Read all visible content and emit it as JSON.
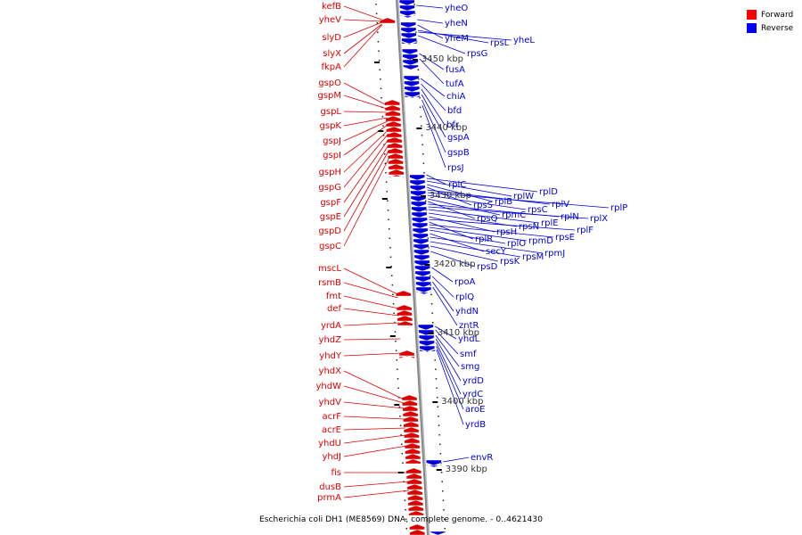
{
  "caption": "Escherichia coli DH1 (ME8569) DNA, complete genome. - 0..4621430",
  "legend": [
    {
      "label": "Forward",
      "color": "#ff0000"
    },
    {
      "label": "Reverse",
      "color": "#0000ff"
    }
  ],
  "colors": {
    "forward": "#dd0000",
    "reverse": "#0000dd",
    "backbone": "#888888"
  },
  "scale_ticks": [
    "3450 kbp",
    "3440 kbp",
    "3430 kbp",
    "3420 kbp",
    "3410 kbp",
    "3400 kbp",
    "3390 kbp"
  ],
  "forward_genes": [
    "kefB",
    "yheV",
    "slyD",
    "slyX",
    "fkpA",
    "gspO",
    "gspM",
    "gspL",
    "gspK",
    "gspJ",
    "gspI",
    "gspH",
    "gspG",
    "gspF",
    "gspE",
    "gspD",
    "gspC",
    "mscL",
    "rsmB",
    "fmt",
    "def",
    "yrdA",
    "yhdZ",
    "yhdY",
    "yhdX",
    "yhdW",
    "yhdV",
    "acrF",
    "acrE",
    "yhdU",
    "yhdJ",
    "fis",
    "dusB",
    "prmA"
  ],
  "reverse_genes": [
    "yheO",
    "yheN",
    "yheM",
    "rpsL",
    "yheL",
    "rpsG",
    "fusA",
    "tufA",
    "chiA",
    "bfd",
    "bfr",
    "gspA",
    "gspB",
    "rpsJ",
    "rplC",
    "rplD",
    "rplW",
    "rplB",
    "rpsS",
    "rplV",
    "rplP",
    "rpsC",
    "rpmC",
    "rpsQ",
    "rplN",
    "rplX",
    "rplE",
    "rpsN",
    "rpsH",
    "rplF",
    "rplR",
    "rpsE",
    "rpmD",
    "rplO",
    "secY",
    "rpmJ",
    "rpsM",
    "rpsK",
    "rpsD",
    "rpoA",
    "rplQ",
    "yhdN",
    "zntR",
    "yhdL",
    "smf",
    "smg",
    "yrdD",
    "yrdC",
    "aroE",
    "yrdB",
    "envR"
  ]
}
